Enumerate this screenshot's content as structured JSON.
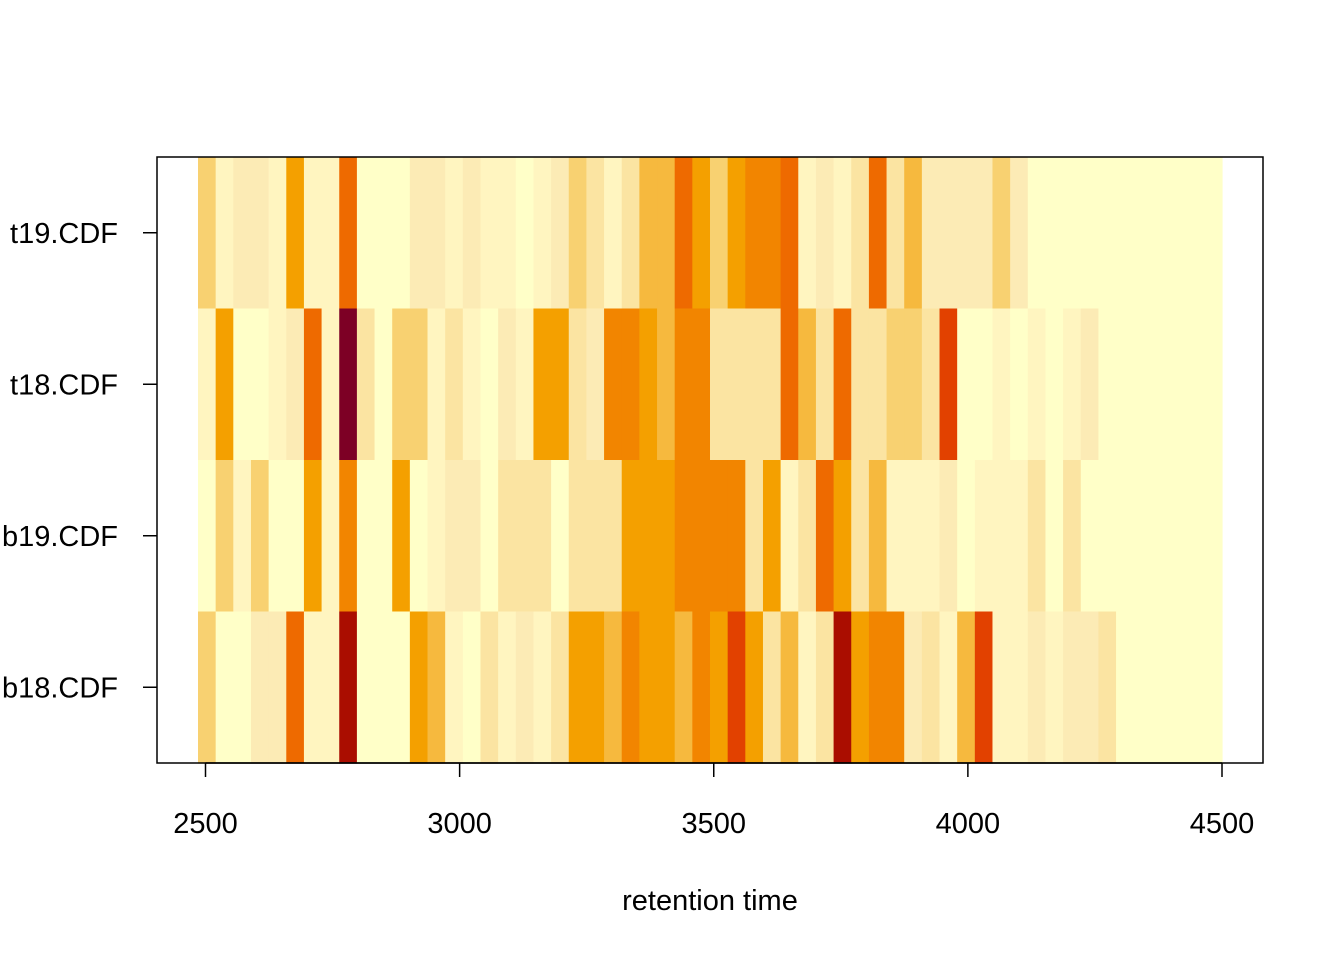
{
  "chart_data": {
    "type": "heatmap",
    "title": "",
    "xlabel": "retention time",
    "ylabel": "",
    "xlim": [
      2500,
      4500
    ],
    "x_ticks": [
      "2500",
      "3000",
      "3500",
      "4000",
      "4500"
    ],
    "y_ticks": [
      "t19.CDF",
      "t18.CDF",
      "b19.CDF",
      "b18.CDF"
    ],
    "rows": [
      "t19.CDF",
      "t18.CDF",
      "b19.CDF",
      "b18.CDF"
    ],
    "palette": [
      "#FFFFC8",
      "#FFF5C0",
      "#FCEBB5",
      "#FBE4A2",
      "#F8D171",
      "#F6B93E",
      "#F4A000",
      "#F28500",
      "#EE6A00",
      "#E24100",
      "#AA0D00",
      "#7D0025"
    ],
    "bins": {
      "start": 2490,
      "width": 30,
      "count": 58
    },
    "values": {
      "t19.CDF": [
        4,
        1,
        2,
        2,
        1,
        6,
        1,
        1,
        8,
        0,
        0,
        0,
        2,
        2,
        1,
        2,
        1,
        1,
        0,
        1,
        2,
        4,
        3,
        1,
        3,
        5,
        5,
        8,
        6,
        4,
        6,
        7,
        7,
        8,
        1,
        2,
        1,
        3,
        8,
        3,
        5,
        2,
        2,
        2,
        2,
        4,
        2,
        0,
        0,
        0,
        0,
        0,
        0,
        0,
        0,
        0,
        0,
        0
      ],
      "t18.CDF": [
        1,
        6,
        0,
        0,
        1,
        2,
        8,
        1,
        11,
        3,
        0,
        4,
        4,
        1,
        3,
        1,
        0,
        2,
        1,
        6,
        6,
        3,
        2,
        7,
        7,
        6,
        5,
        7,
        7,
        3,
        3,
        3,
        3,
        8,
        5,
        3,
        8,
        3,
        3,
        4,
        4,
        3,
        9,
        0,
        0,
        1,
        0,
        1,
        0,
        1,
        2,
        0,
        0,
        0,
        0,
        0,
        0,
        0
      ],
      "b19.CDF": [
        0,
        4,
        1,
        4,
        0,
        0,
        6,
        1,
        7,
        0,
        0,
        6,
        0,
        1,
        2,
        2,
        0,
        3,
        3,
        3,
        0,
        3,
        3,
        3,
        6,
        6,
        6,
        7,
        7,
        7,
        7,
        3,
        6,
        1,
        3,
        8,
        6,
        3,
        5,
        1,
        1,
        1,
        2,
        0,
        1,
        1,
        1,
        3,
        0,
        3,
        0,
        0,
        0,
        0,
        0,
        0,
        0,
        0
      ],
      "b18.CDF": [
        4,
        0,
        0,
        2,
        2,
        8,
        1,
        1,
        10,
        0,
        0,
        0,
        6,
        5,
        1,
        0,
        3,
        1,
        2,
        1,
        3,
        6,
        6,
        5,
        7,
        6,
        6,
        5,
        7,
        6,
        9,
        6,
        3,
        5,
        1,
        3,
        10,
        6,
        7,
        7,
        2,
        3,
        1,
        5,
        9,
        1,
        1,
        2,
        1,
        2,
        2,
        3,
        0,
        0,
        0,
        0,
        0,
        0
      ]
    }
  }
}
